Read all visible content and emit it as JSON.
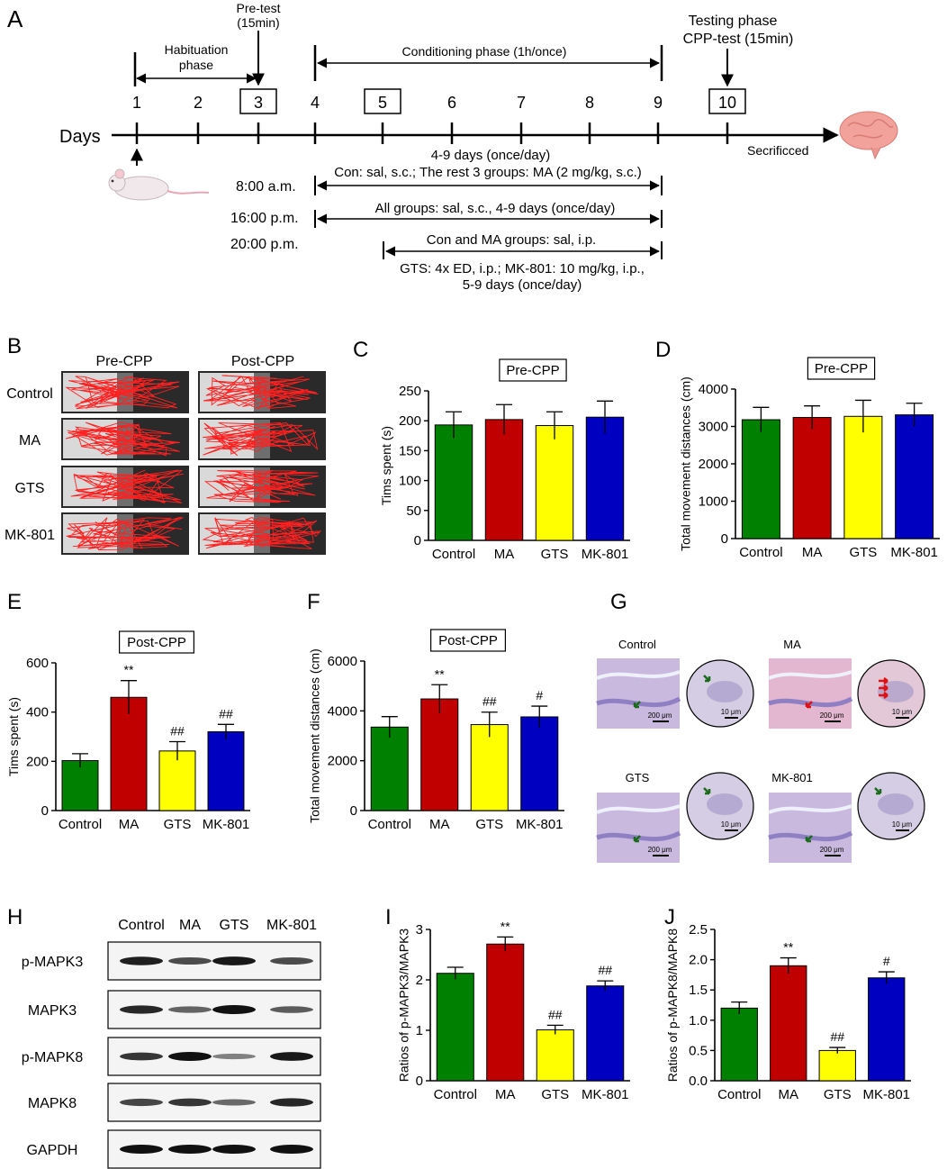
{
  "panel_labels": [
    "A",
    "B",
    "C",
    "D",
    "E",
    "F",
    "G",
    "H",
    "I",
    "J"
  ],
  "timeline": {
    "days_label": "Days",
    "days": [
      "1",
      "2",
      "3",
      "4",
      "5",
      "6",
      "7",
      "8",
      "9",
      "10"
    ],
    "boxed_days": [
      "3",
      "5",
      "10"
    ],
    "pretest": [
      "Pre-test",
      "(15min)"
    ],
    "habituation": [
      "Habituation",
      "phase"
    ],
    "conditioning": "Conditioning phase (1h/once)",
    "testing": [
      "Testing phase",
      "CPP-test (15min)"
    ],
    "sacrificed": "Secrificced",
    "schedule_header": "4-9 days (once/day)",
    "times": [
      "8:00 a.m.",
      "16:00 p.m.",
      "20:00 p.m."
    ],
    "am_text": "Con: sal, s.c.; The rest 3 groups: MA (2 mg/kg, s.c.)",
    "pm16_text": "All groups: sal, s.c., 4-9 days (once/day)",
    "pm20_text": "Con and MA groups: sal, i.p.",
    "pm20_note": [
      "GTS: 4x ED, i.p.; MK-801: 10 mg/kg, i.p.,",
      "5-9 days (once/day)"
    ]
  },
  "tracks": {
    "columns": [
      "Pre-CPP",
      "Post-CPP"
    ],
    "rows": [
      "Control",
      "MA",
      "GTS",
      "MK-801"
    ]
  },
  "histology": {
    "labels": [
      "Control",
      "MA",
      "GTS",
      "MK-801"
    ],
    "scale_large": "200 μm",
    "scale_small": "10 μm"
  },
  "blot": {
    "lanes": [
      "Control",
      "MA",
      "GTS",
      "MK-801"
    ],
    "proteins": [
      "p-MAPK3",
      "MAPK3",
      "p-MAPK8",
      "MAPK8",
      "GAPDH"
    ],
    "intensity": [
      [
        0.9,
        0.6,
        0.95,
        0.6
      ],
      [
        0.85,
        0.45,
        1.0,
        0.5
      ],
      [
        0.75,
        1.0,
        0.25,
        0.95
      ],
      [
        0.65,
        0.75,
        0.4,
        0.85
      ],
      [
        1.0,
        1.0,
        1.0,
        1.0
      ]
    ]
  },
  "colors": {
    "Control": "#008000",
    "MA": "#c00000",
    "GTS": "#ffff00",
    "MK-801": "#0000c0"
  },
  "chart_data": [
    {
      "panel": "C",
      "type": "bar",
      "title": "Pre-CPP",
      "ylabel": "Tims spent (s)",
      "categories": [
        "Control",
        "MA",
        "GTS",
        "MK-801"
      ],
      "values": [
        193,
        202,
        192,
        206
      ],
      "errors": [
        22,
        25,
        23,
        27
      ],
      "ylim": [
        0,
        250
      ],
      "yticks": [
        "0",
        "50",
        "100",
        "150",
        "200",
        "250"
      ],
      "annotations": [
        "",
        "",
        "",
        ""
      ]
    },
    {
      "panel": "D",
      "type": "bar",
      "title": "Pre-CPP",
      "ylabel": "Total movement distances (cm)",
      "categories": [
        "Control",
        "MA",
        "GTS",
        "MK-801"
      ],
      "values": [
        3180,
        3240,
        3270,
        3310
      ],
      "errors": [
        330,
        310,
        430,
        310
      ],
      "ylim": [
        0,
        4000
      ],
      "yticks": [
        "0",
        "1000",
        "2000",
        "3000",
        "4000"
      ],
      "annotations": [
        "",
        "",
        "",
        ""
      ]
    },
    {
      "panel": "E",
      "type": "bar",
      "title": "Post-CPP",
      "ylabel": "Tims spent (s)",
      "categories": [
        "Control",
        "MA",
        "GTS",
        "MK-801"
      ],
      "values": [
        203,
        460,
        242,
        320
      ],
      "errors": [
        28,
        68,
        38,
        30
      ],
      "ylim": [
        0,
        600
      ],
      "yticks": [
        "0",
        "200",
        "400",
        "600"
      ],
      "annotations": [
        "",
        "**",
        "##",
        "##"
      ]
    },
    {
      "panel": "F",
      "type": "bar",
      "title": "Post-CPP",
      "ylabel": "Total movement distances (cm)",
      "categories": [
        "Control",
        "MA",
        "GTS",
        "MK-801"
      ],
      "values": [
        3350,
        4480,
        3450,
        3760
      ],
      "errors": [
        420,
        570,
        500,
        430
      ],
      "ylim": [
        0,
        6000
      ],
      "yticks": [
        "0",
        "2000",
        "4000",
        "6000"
      ],
      "annotations": [
        "",
        "**",
        "##",
        "#"
      ]
    },
    {
      "panel": "I",
      "type": "bar",
      "title": "",
      "ylabel": "Ratios of p-MAPK3/MAPK3",
      "categories": [
        "Control",
        "MA",
        "GTS",
        "MK-801"
      ],
      "values": [
        2.13,
        2.71,
        1.01,
        1.88
      ],
      "errors": [
        0.12,
        0.14,
        0.09,
        0.1
      ],
      "ylim": [
        0,
        3
      ],
      "yticks": [
        "0",
        "1",
        "2",
        "3"
      ],
      "annotations": [
        "",
        "**",
        "##",
        "##"
      ]
    },
    {
      "panel": "J",
      "type": "bar",
      "title": "",
      "ylabel": "Ratios of p-MAPK8/MAPK8",
      "categories": [
        "Control",
        "MA",
        "GTS",
        "MK-801"
      ],
      "values": [
        1.2,
        1.9,
        0.5,
        1.7
      ],
      "errors": [
        0.1,
        0.13,
        0.05,
        0.1
      ],
      "ylim": [
        0,
        2.5
      ],
      "yticks": [
        "0.0",
        "0.5",
        "1.0",
        "1.5",
        "2.0",
        "2.5"
      ],
      "annotations": [
        "",
        "**",
        "##",
        "#"
      ]
    }
  ]
}
